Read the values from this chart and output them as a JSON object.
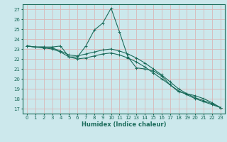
{
  "xlabel": "Humidex (Indice chaleur)",
  "bg_color": "#cce8ec",
  "grid_color": "#d9b8b8",
  "line_color": "#1a6b5a",
  "spine_color": "#1a6b5a",
  "xlim": [
    -0.5,
    23.5
  ],
  "ylim": [
    16.5,
    27.5
  ],
  "xticks": [
    0,
    1,
    2,
    3,
    4,
    5,
    6,
    7,
    8,
    9,
    10,
    11,
    12,
    13,
    14,
    15,
    16,
    17,
    18,
    19,
    20,
    21,
    22,
    23
  ],
  "yticks": [
    17,
    18,
    19,
    20,
    21,
    22,
    23,
    24,
    25,
    26,
    27
  ],
  "line1_x": [
    0,
    1,
    2,
    3,
    4,
    5,
    6,
    7,
    8,
    9,
    10,
    11,
    12,
    13,
    14,
    15,
    16,
    17,
    18,
    19,
    20,
    21,
    22,
    23
  ],
  "line1_y": [
    23.3,
    23.2,
    23.2,
    23.2,
    23.3,
    22.2,
    22.2,
    23.3,
    24.9,
    25.6,
    27.1,
    24.7,
    22.2,
    21.1,
    21.0,
    20.8,
    20.3,
    19.4,
    18.7,
    18.5,
    18.3,
    18.0,
    17.6,
    17.1
  ],
  "line2_x": [
    0,
    1,
    2,
    3,
    4,
    5,
    6,
    7,
    8,
    9,
    10,
    11,
    12,
    13,
    14,
    15,
    16,
    17,
    18,
    19,
    20,
    21,
    22,
    23
  ],
  "line2_y": [
    23.3,
    23.2,
    23.2,
    23.1,
    22.8,
    22.4,
    22.3,
    22.5,
    22.7,
    22.9,
    23.0,
    22.8,
    22.5,
    22.1,
    21.6,
    21.0,
    20.4,
    19.7,
    19.0,
    18.5,
    18.1,
    17.8,
    17.5,
    17.1
  ],
  "line3_x": [
    0,
    1,
    2,
    3,
    4,
    5,
    6,
    7,
    8,
    9,
    10,
    11,
    12,
    13,
    14,
    15,
    16,
    17,
    18,
    19,
    20,
    21,
    22,
    23
  ],
  "line3_y": [
    23.3,
    23.2,
    23.1,
    23.0,
    22.7,
    22.2,
    22.0,
    22.1,
    22.3,
    22.5,
    22.6,
    22.4,
    22.1,
    21.7,
    21.2,
    20.6,
    20.0,
    19.4,
    18.8,
    18.4,
    18.0,
    17.7,
    17.4,
    17.1
  ],
  "tick_fontsize": 5,
  "xlabel_fontsize": 6
}
